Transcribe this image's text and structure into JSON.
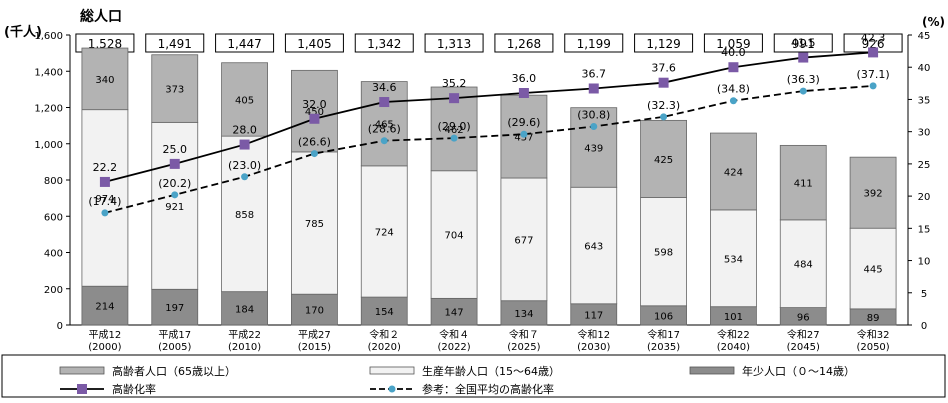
{
  "chart_data": {
    "type": "bar",
    "title": "総人口",
    "left_axis_unit": "(千人)",
    "right_axis_unit": "(%)",
    "ylim_left": [
      0,
      1600
    ],
    "yticks_left": [
      "0",
      "200",
      "400",
      "600",
      "800",
      "1,000",
      "1,200",
      "1,400",
      "1,600"
    ],
    "ylim_right": [
      0,
      45
    ],
    "yticks_right": [
      "0",
      "5",
      "10",
      "15",
      "20",
      "25",
      "30",
      "35",
      "40",
      "45"
    ],
    "categories": [
      [
        "平成12",
        "(2000)"
      ],
      [
        "平成17",
        "(2005)"
      ],
      [
        "平成22",
        "(2010)"
      ],
      [
        "平成27",
        "(2015)"
      ],
      [
        "令和２",
        "(2020)"
      ],
      [
        "令和４",
        "(2022)"
      ],
      [
        "令和７",
        "(2025)"
      ],
      [
        "令和12",
        "(2030)"
      ],
      [
        "令和17",
        "(2035)"
      ],
      [
        "令和22",
        "(2040)"
      ],
      [
        "令和27",
        "(2045)"
      ],
      [
        "令和32",
        "(2050)"
      ]
    ],
    "totals": [
      "1,528",
      "1,491",
      "1,447",
      "1,405",
      "1,342",
      "1,313",
      "1,268",
      "1,199",
      "1,129",
      "1,059",
      "991",
      "926"
    ],
    "series": [
      {
        "name": "年少人口（０～14歳）",
        "color": "#8c8c8c",
        "values": [
          214,
          197,
          184,
          170,
          154,
          147,
          134,
          117,
          106,
          101,
          96,
          89
        ]
      },
      {
        "name": "生産年齢人口（15～64歳）",
        "color": "#f2f2f2",
        "values": [
          974,
          921,
          858,
          785,
          724,
          704,
          677,
          643,
          598,
          534,
          484,
          445
        ]
      },
      {
        "name": "高齢者人口（65歳以上）",
        "color": "#b3b3b3",
        "values": [
          340,
          373,
          405,
          450,
          465,
          462,
          457,
          439,
          425,
          424,
          411,
          392
        ]
      }
    ],
    "lines": [
      {
        "name": "高齢化率",
        "style": "solid",
        "color": "#000000",
        "marker_color": "#7b5aa6",
        "values": [
          22.2,
          25.0,
          28.0,
          32.0,
          34.6,
          35.2,
          36.0,
          36.7,
          37.6,
          40.0,
          41.5,
          42.3
        ],
        "labels": [
          "22.2",
          "25.0",
          "28.0",
          "32.0",
          "34.6",
          "35.2",
          "36.0",
          "36.7",
          "37.6",
          "40.0",
          "41.5",
          "42.3"
        ]
      },
      {
        "name": "参考：全国平均の高齢化率",
        "style": "dashed",
        "color": "#000000",
        "marker_color": "#4aa3c7",
        "values": [
          17.4,
          20.2,
          23.0,
          26.6,
          28.6,
          29.0,
          29.6,
          30.8,
          32.3,
          34.8,
          36.3,
          37.1
        ],
        "labels": [
          "(17.4)",
          "(20.2)",
          "(23.0)",
          "(26.6)",
          "(28.6)",
          "(29.0)",
          "(29.6)",
          "(30.8)",
          "(32.3)",
          "(34.8)",
          "(36.3)",
          "(37.1)"
        ]
      }
    ],
    "legend": [
      {
        "label": "高齢者人口（65歳以上）",
        "kind": "box",
        "color": "#b3b3b3"
      },
      {
        "label": "生産年齢人口（15～64歳）",
        "kind": "box",
        "color": "#f2f2f2"
      },
      {
        "label": "年少人口（０～14歳）",
        "kind": "box",
        "color": "#8c8c8c"
      },
      {
        "label": "高齢化率",
        "kind": "solid",
        "color": "#7b5aa6"
      },
      {
        "label": "参考：全国平均の高齢化率",
        "kind": "dashed",
        "color": "#4aa3c7"
      }
    ],
    "legend_position": "bottom",
    "grid": false
  }
}
